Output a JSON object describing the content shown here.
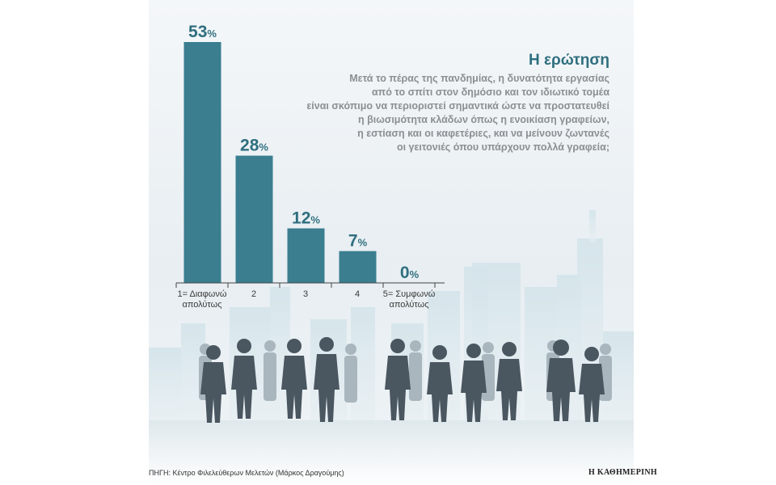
{
  "question": {
    "title": "Η ερώτηση",
    "lines": [
      "Μετά το πέρας της πανδημίας, η δυνατότητα εργασίας",
      "από το σπίτι στον δημόσιο και τον ιδιωτικό τομέα",
      "είναι σκόπιμο να περιοριστεί σημαντικά ώστε να προστατευθεί",
      "η βιωσιμότητα κλάδων όπως η ενοικίαση γραφείων,",
      "η εστίαση και οι καφετέριες, και να μείνουν ζωντανές",
      "οι γειτονιές όπου υπάρχουν πολλά γραφεία;"
    ]
  },
  "chart_data": {
    "type": "bar",
    "categories": [
      [
        "1= Διαφωνώ",
        "απολύτως"
      ],
      [
        "2"
      ],
      [
        "3"
      ],
      [
        "4"
      ],
      [
        "5= Συμφωνώ",
        "απολύτως"
      ]
    ],
    "values": [
      53,
      28,
      12,
      7,
      0
    ],
    "value_suffix": "%",
    "ylim": [
      0,
      55
    ],
    "grid": false,
    "bar_color": "#3a7e8f"
  },
  "source": "ΠΗΓΗ: Κέντρο Φιλελεύθερων Μελετών (Μάρκος Δραγούμης)",
  "logo": "Η ΚΑΘΗΜΕΡΙΝΗ",
  "colors": {
    "accent": "#2f6f7f",
    "question_text": "#8b8f93",
    "skyline": "#c5dce4",
    "crowd_dark": "#4a5660",
    "crowd_light": "#a9b6bd"
  }
}
